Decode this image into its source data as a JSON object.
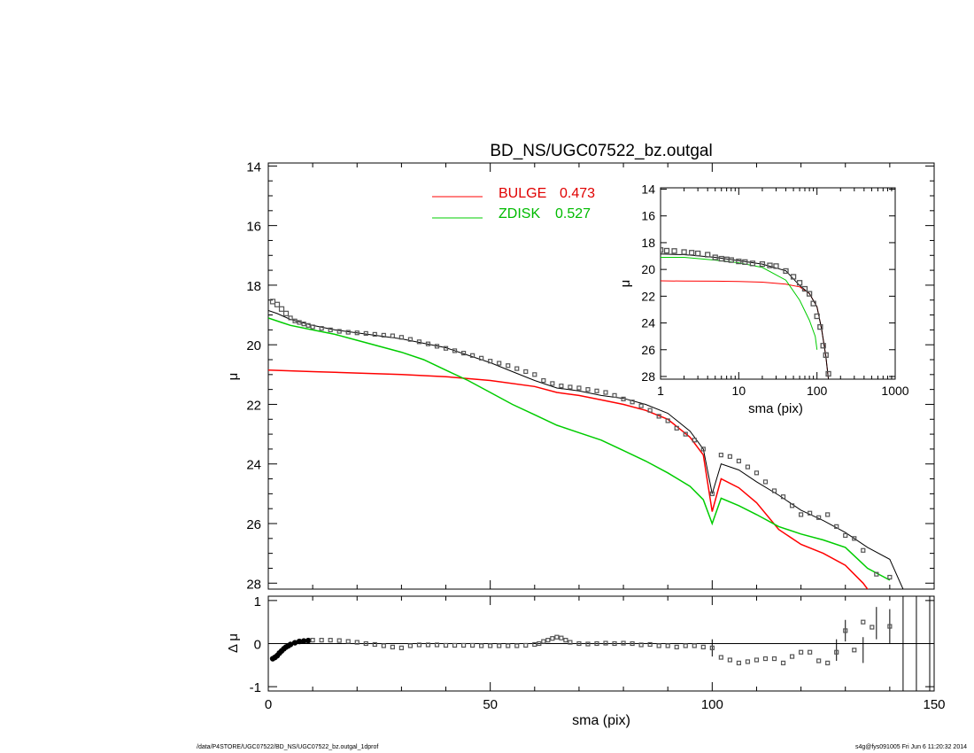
{
  "colors": {
    "bulge": "#ff0000",
    "disk": "#00cc00",
    "total": "#000000",
    "data": "#555555",
    "axis": "#000000"
  },
  "footer": {
    "path": "/data/P4STORE/UGC07522/BD_NS/UGC07522_bz.outgal_1dprof",
    "stamp": "s4g@fys091005  Fri Jun  6 11:20:32 2014"
  },
  "chart_data": [
    {
      "panel": "main",
      "type": "line",
      "title": "BD_NS/UGC07522_bz.outgal",
      "xlabel": "",
      "ylabel": "μ",
      "xlim": [
        0,
        150
      ],
      "ylim": [
        28.2,
        13.9
      ],
      "y_reversed": true,
      "x_ticks": [
        0,
        50,
        100,
        150
      ],
      "y_ticks": [
        14,
        16,
        18,
        20,
        22,
        24,
        26,
        28
      ],
      "legend": {
        "placement": "top-center",
        "entries": [
          {
            "label": "BULGE",
            "value": "0.473",
            "series": "bulge"
          },
          {
            "label": "ZDISK",
            "value": "0.527",
            "series": "disk"
          }
        ]
      },
      "series": [
        {
          "id": "bulge",
          "color": "red",
          "x": [
            0,
            10,
            20,
            30,
            40,
            50,
            60,
            65,
            70,
            75,
            80,
            85,
            90,
            95,
            98,
            100,
            102,
            106,
            110,
            115,
            120,
            125,
            130,
            134,
            136
          ],
          "y": [
            20.85,
            20.9,
            20.95,
            21.0,
            21.07,
            21.2,
            21.4,
            21.6,
            21.7,
            21.85,
            22.0,
            22.2,
            22.5,
            23.1,
            23.7,
            25.6,
            24.5,
            24.8,
            25.3,
            26.2,
            26.7,
            27.0,
            27.4,
            28.0,
            28.4
          ]
        },
        {
          "id": "disk",
          "color": "green",
          "x": [
            0,
            3,
            5,
            10,
            15,
            20,
            25,
            30,
            35,
            40,
            45,
            50,
            55,
            60,
            65,
            70,
            75,
            80,
            85,
            90,
            95,
            98,
            100,
            102,
            106,
            110,
            115,
            120,
            125,
            130,
            135,
            140
          ],
          "y": [
            19.1,
            19.25,
            19.35,
            19.5,
            19.65,
            19.85,
            20.05,
            20.25,
            20.5,
            20.85,
            21.2,
            21.6,
            22.0,
            22.35,
            22.7,
            22.95,
            23.2,
            23.55,
            23.9,
            24.3,
            24.75,
            25.2,
            26.0,
            25.15,
            25.4,
            25.7,
            26.1,
            26.35,
            26.55,
            26.8,
            27.5,
            27.9
          ]
        },
        {
          "id": "total",
          "color": "black",
          "x": [
            0,
            2,
            5,
            10,
            15,
            20,
            25,
            30,
            35,
            40,
            45,
            50,
            55,
            60,
            65,
            70,
            75,
            80,
            85,
            90,
            95,
            98,
            100,
            102,
            106,
            110,
            115,
            120,
            125,
            130,
            135,
            140,
            143
          ],
          "y": [
            18.85,
            18.95,
            19.15,
            19.35,
            19.5,
            19.6,
            19.7,
            19.8,
            19.95,
            20.1,
            20.35,
            20.6,
            20.9,
            21.2,
            21.45,
            21.55,
            21.7,
            21.8,
            22.0,
            22.3,
            22.9,
            23.5,
            25.0,
            24.0,
            24.2,
            24.6,
            25.05,
            25.55,
            25.9,
            26.3,
            26.8,
            27.2,
            28.2
          ]
        },
        {
          "id": "data",
          "marker": "square",
          "x": [
            1,
            2,
            3,
            4,
            5,
            6,
            7,
            8,
            9,
            10,
            12,
            14,
            16,
            18,
            20,
            22,
            24,
            26,
            28,
            30,
            32,
            34,
            36,
            38,
            40,
            42,
            44,
            46,
            48,
            50,
            52,
            54,
            56,
            58,
            60,
            62,
            64,
            66,
            68,
            70,
            72,
            74,
            76,
            78,
            80,
            82,
            84,
            86,
            88,
            90,
            92,
            94,
            96,
            98,
            100,
            102,
            104,
            106,
            108,
            110,
            112,
            114,
            116,
            118,
            120,
            122,
            124,
            126,
            128,
            130,
            132,
            134,
            137,
            140
          ],
          "y": [
            18.55,
            18.65,
            18.8,
            18.95,
            19.1,
            19.2,
            19.25,
            19.3,
            19.35,
            19.4,
            19.45,
            19.5,
            19.55,
            19.58,
            19.6,
            19.62,
            19.65,
            19.68,
            19.7,
            19.75,
            19.82,
            19.9,
            19.97,
            20.05,
            20.12,
            20.2,
            20.28,
            20.36,
            20.45,
            20.55,
            20.62,
            20.7,
            20.8,
            20.9,
            21.0,
            21.2,
            21.3,
            21.38,
            21.42,
            21.45,
            21.5,
            21.55,
            21.6,
            21.7,
            21.82,
            21.92,
            22.05,
            22.2,
            22.4,
            22.55,
            22.8,
            23.0,
            23.2,
            23.5,
            25.0,
            23.7,
            23.75,
            23.9,
            24.1,
            24.3,
            24.6,
            24.9,
            25.1,
            25.4,
            25.7,
            25.65,
            25.8,
            25.7,
            26.1,
            26.4,
            26.5,
            26.9,
            27.7,
            27.8
          ]
        }
      ]
    },
    {
      "panel": "inset",
      "type": "line",
      "xlabel": "sma (pix)",
      "ylabel": "μ",
      "x_scale": "log",
      "xlim": [
        1,
        1000
      ],
      "ylim": [
        28.2,
        13.9
      ],
      "y_reversed": true,
      "x_ticks": [
        1,
        10,
        100,
        1000
      ],
      "x_tick_labels": [
        "1",
        "10",
        "100",
        "1000"
      ],
      "y_ticks": [
        14,
        16,
        18,
        20,
        22,
        24,
        26,
        28
      ],
      "series": [
        {
          "id": "bulge",
          "color": "red",
          "x": [
            1,
            2,
            5,
            10,
            20,
            40,
            60,
            80,
            100,
            115,
            130,
            140
          ],
          "y": [
            20.85,
            20.87,
            20.88,
            20.9,
            20.95,
            21.1,
            21.3,
            21.8,
            22.8,
            24.5,
            26.5,
            28.2
          ]
        },
        {
          "id": "disk",
          "color": "green",
          "x": [
            1,
            2,
            5,
            10,
            20,
            40,
            60,
            80,
            95,
            100
          ],
          "y": [
            19.1,
            19.1,
            19.3,
            19.5,
            19.85,
            20.8,
            22.3,
            23.8,
            25.0,
            26.0
          ]
        },
        {
          "id": "total",
          "color": "black",
          "x": [
            1,
            2,
            5,
            10,
            20,
            40,
            60,
            80,
            100,
            115,
            130,
            140
          ],
          "y": [
            18.85,
            18.9,
            19.1,
            19.35,
            19.6,
            20.1,
            21.2,
            21.8,
            22.8,
            24.5,
            26.5,
            28.2
          ]
        },
        {
          "id": "data",
          "marker": "square",
          "x": [
            1,
            1.2,
            1.5,
            2,
            2.5,
            3,
            4,
            5,
            6,
            7,
            8,
            10,
            12,
            15,
            20,
            25,
            30,
            40,
            50,
            60,
            70,
            80,
            90,
            100,
            110,
            120,
            130,
            140
          ],
          "y": [
            18.55,
            18.6,
            18.62,
            18.7,
            18.75,
            18.8,
            18.9,
            19.1,
            19.2,
            19.25,
            19.3,
            19.4,
            19.45,
            19.55,
            19.6,
            19.7,
            19.75,
            20.12,
            20.55,
            21.0,
            21.45,
            21.82,
            22.55,
            23.5,
            24.3,
            25.7,
            26.4,
            27.8
          ]
        }
      ]
    },
    {
      "panel": "residual",
      "type": "scatter",
      "xlabel": "sma (pix)",
      "ylabel": "Δ μ",
      "xlim": [
        0,
        150
      ],
      "ylim": [
        -1.1,
        1.1
      ],
      "x_ticks": [
        0,
        50,
        100,
        150
      ],
      "y_ticks": [
        -1,
        0,
        1
      ],
      "x": [
        1,
        1.5,
        2,
        2.5,
        3,
        3.5,
        4,
        4.5,
        5,
        6,
        7,
        8,
        9,
        10,
        12,
        14,
        16,
        18,
        20,
        22,
        24,
        26,
        28,
        30,
        32,
        34,
        36,
        38,
        40,
        42,
        44,
        46,
        48,
        50,
        52,
        54,
        56,
        58,
        60,
        61,
        62,
        63,
        64,
        65,
        66,
        67,
        68,
        70,
        72,
        74,
        76,
        78,
        80,
        82,
        84,
        86,
        88,
        90,
        92,
        94,
        96,
        98,
        100,
        102,
        104,
        106,
        108,
        110,
        112,
        114,
        116,
        118,
        120,
        122,
        124,
        126,
        128,
        130,
        132,
        134,
        136,
        140
      ],
      "y": [
        -0.35,
        -0.32,
        -0.28,
        -0.22,
        -0.17,
        -0.12,
        -0.08,
        -0.05,
        -0.02,
        0.02,
        0.05,
        0.06,
        0.07,
        0.08,
        0.08,
        0.08,
        0.07,
        0.05,
        0.03,
        0.0,
        -0.02,
        -0.05,
        -0.08,
        -0.1,
        -0.05,
        -0.03,
        -0.03,
        -0.03,
        -0.04,
        -0.04,
        -0.04,
        -0.04,
        -0.05,
        -0.05,
        -0.05,
        -0.05,
        -0.05,
        -0.04,
        -0.02,
        0.0,
        0.05,
        0.08,
        0.12,
        0.15,
        0.13,
        0.08,
        0.03,
        0.0,
        -0.01,
        0.0,
        0.01,
        0.0,
        0.01,
        0.0,
        -0.03,
        -0.02,
        -0.05,
        -0.05,
        -0.08,
        -0.05,
        -0.05,
        -0.08,
        -0.1,
        -0.32,
        -0.38,
        -0.45,
        -0.42,
        -0.38,
        -0.35,
        -0.35,
        -0.45,
        -0.3,
        -0.2,
        -0.2,
        -0.4,
        -0.45,
        -0.2,
        0.3,
        -0.15,
        0.5,
        0.38,
        0.4
      ],
      "error_bars": [
        {
          "x": 100,
          "lo": -0.3,
          "hi": 0.1
        },
        {
          "x": 128,
          "lo": -0.4,
          "hi": 0.1
        },
        {
          "x": 130,
          "lo": 0.05,
          "hi": 0.55
        },
        {
          "x": 134,
          "lo": -0.45,
          "hi": 0.15
        },
        {
          "x": 137,
          "lo": 0.1,
          "hi": 0.85
        },
        {
          "x": 140,
          "lo": 0.0,
          "hi": 0.8
        }
      ],
      "vertical_lines": [
        143,
        146,
        149
      ]
    }
  ]
}
